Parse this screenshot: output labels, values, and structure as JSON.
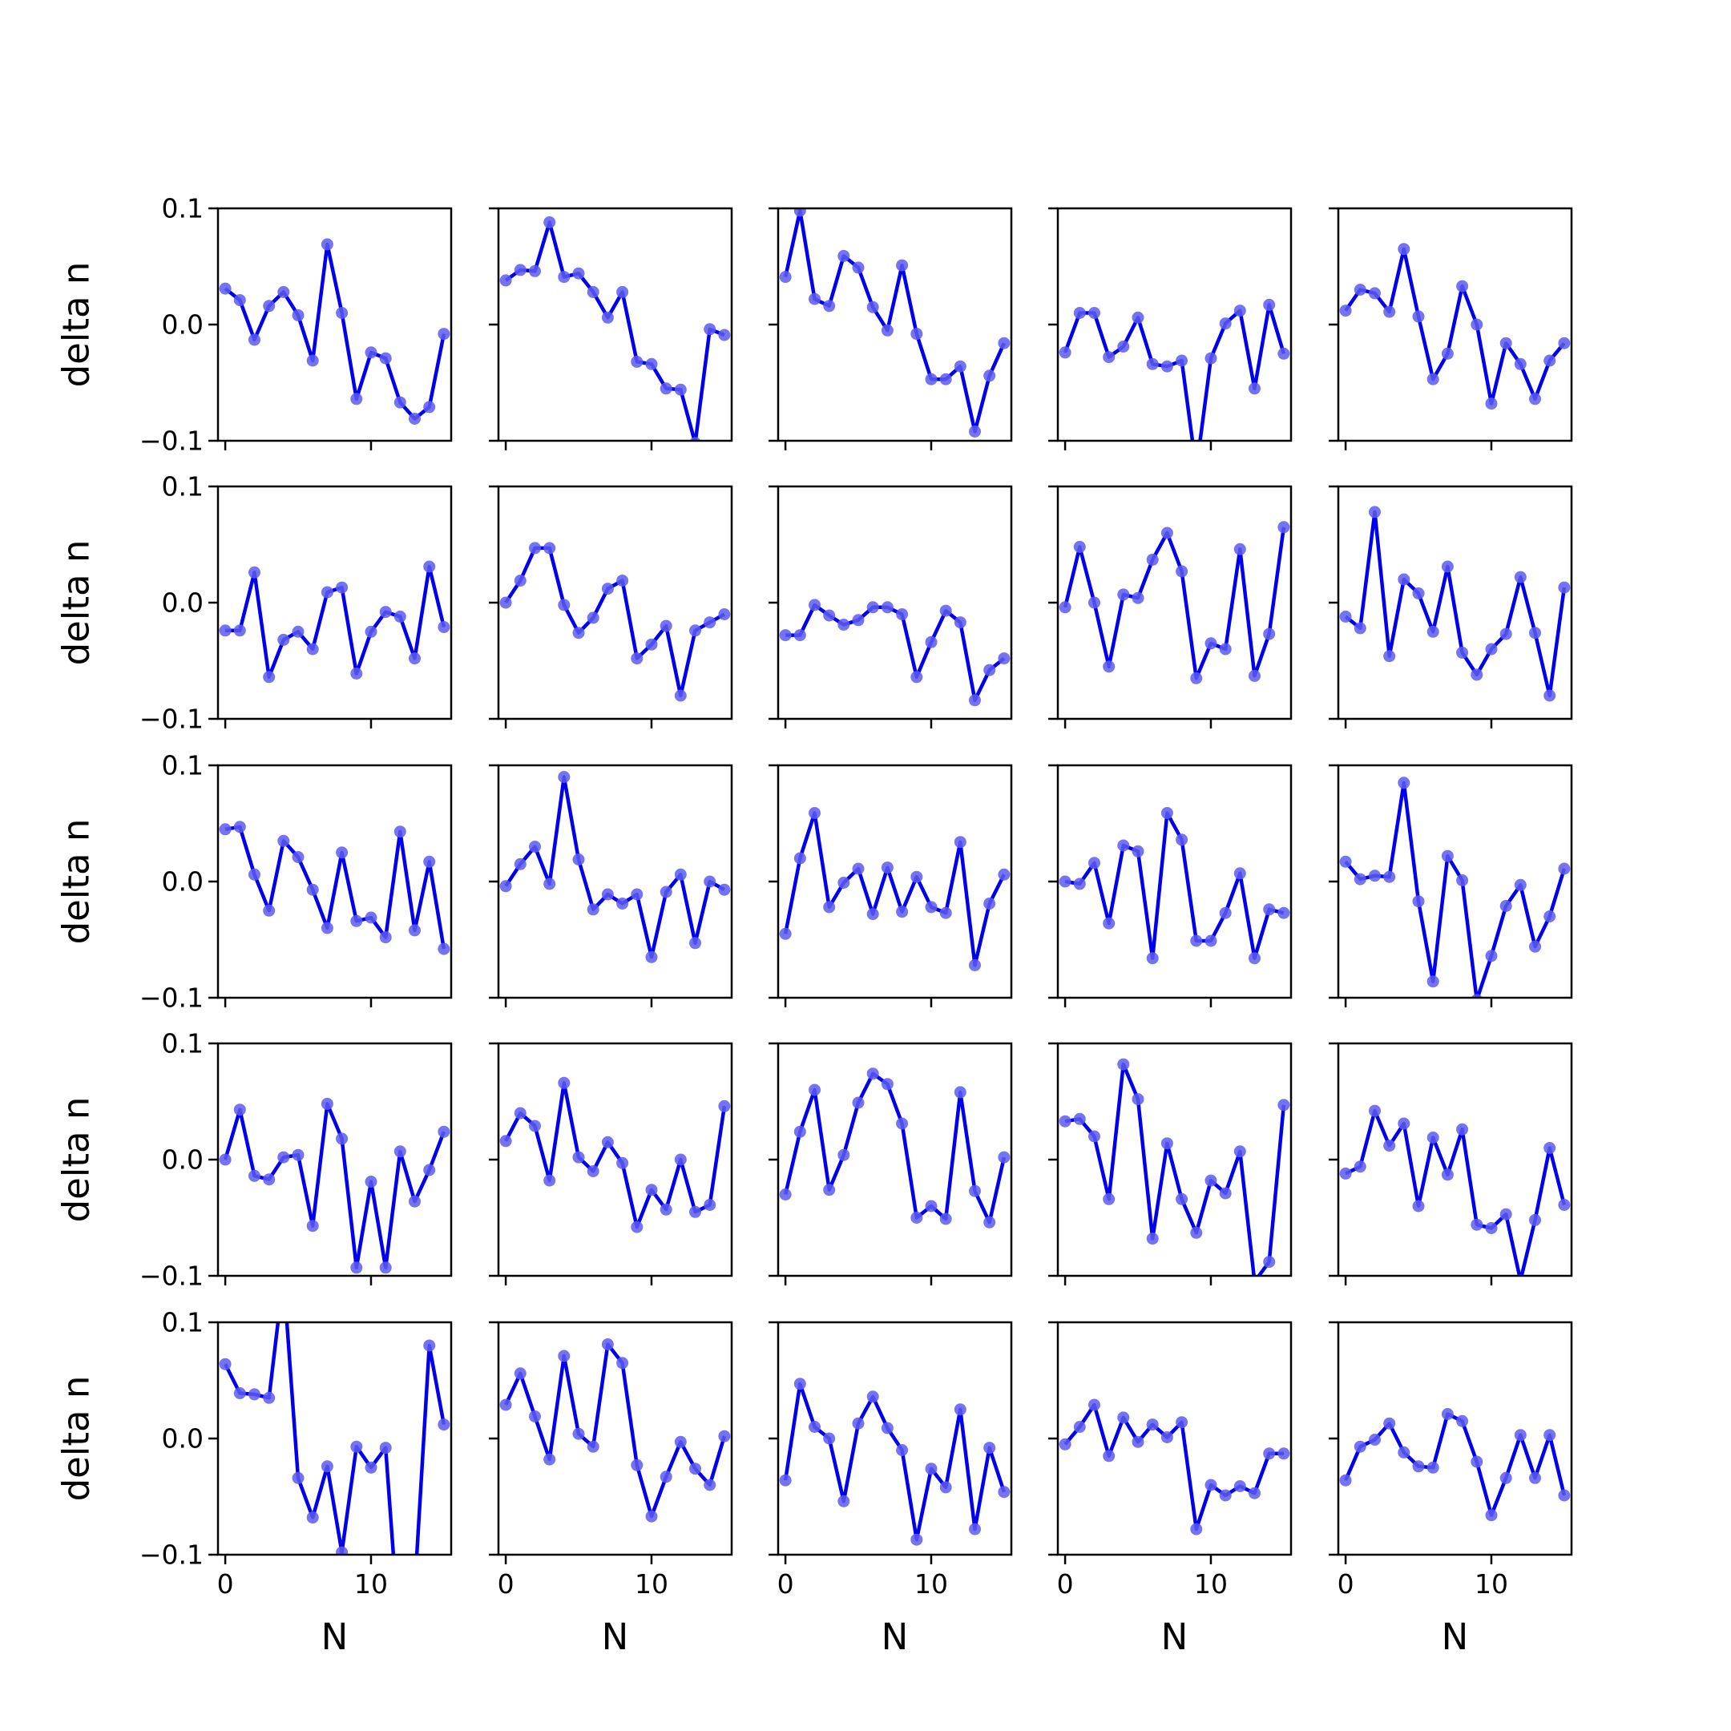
{
  "chart_data": {
    "type": "line",
    "layout": {
      "rows": 5,
      "cols": 5
    },
    "xlabel": "N",
    "ylabel": "delta n",
    "x": [
      0,
      1,
      2,
      3,
      4,
      5,
      6,
      7,
      8,
      9,
      10,
      11,
      12,
      13,
      14,
      15
    ],
    "xticks": [
      0,
      10
    ],
    "xtick_labels": [
      "0",
      "10"
    ],
    "ylim": [
      -0.1,
      0.1
    ],
    "yticks": [
      -0.1,
      0.0,
      0.1
    ],
    "ytick_labels": [
      "−0.1",
      "0.0",
      "0.1"
    ],
    "line_color": "#0000ee",
    "marker_color": "#5c5cf0",
    "panels": [
      {
        "values": [
          0.031,
          0.021,
          -0.013,
          0.016,
          0.028,
          0.008,
          -0.031,
          0.069,
          0.01,
          -0.064,
          -0.024,
          -0.029,
          -0.067,
          -0.081,
          -0.071,
          -0.008
        ]
      },
      {
        "values": [
          0.038,
          0.047,
          0.046,
          0.088,
          0.041,
          0.044,
          0.028,
          0.006,
          0.028,
          -0.032,
          -0.034,
          -0.055,
          -0.056,
          -0.102,
          -0.004,
          -0.009
        ]
      },
      {
        "values": [
          0.041,
          0.098,
          0.022,
          0.016,
          0.059,
          0.049,
          0.015,
          -0.005,
          0.051,
          -0.008,
          -0.047,
          -0.047,
          -0.036,
          -0.092,
          -0.044,
          -0.016
        ]
      },
      {
        "values": [
          -0.024,
          0.01,
          0.01,
          -0.028,
          -0.019,
          0.006,
          -0.034,
          -0.036,
          -0.031,
          -0.125,
          -0.029,
          0.001,
          0.012,
          -0.055,
          0.017,
          -0.025
        ]
      },
      {
        "values": [
          0.012,
          0.03,
          0.027,
          0.011,
          0.065,
          0.007,
          -0.047,
          -0.025,
          0.033,
          0.0,
          -0.068,
          -0.016,
          -0.034,
          -0.064,
          -0.031,
          -0.016
        ]
      },
      {
        "values": [
          -0.024,
          -0.024,
          0.026,
          -0.064,
          -0.032,
          -0.025,
          -0.04,
          0.009,
          0.013,
          -0.061,
          -0.025,
          -0.008,
          -0.012,
          -0.048,
          0.031,
          -0.021
        ]
      },
      {
        "values": [
          0.0,
          0.019,
          0.047,
          0.047,
          -0.002,
          -0.026,
          -0.013,
          0.012,
          0.019,
          -0.048,
          -0.036,
          -0.02,
          -0.08,
          -0.024,
          -0.017,
          -0.01
        ]
      },
      {
        "values": [
          -0.028,
          -0.028,
          -0.002,
          -0.011,
          -0.019,
          -0.015,
          -0.004,
          -0.004,
          -0.01,
          -0.064,
          -0.034,
          -0.007,
          -0.017,
          -0.084,
          -0.058,
          -0.048
        ]
      },
      {
        "values": [
          -0.004,
          0.048,
          0.0,
          -0.055,
          0.007,
          0.004,
          0.037,
          0.06,
          0.027,
          -0.065,
          -0.035,
          -0.04,
          0.046,
          -0.063,
          -0.027,
          0.065
        ]
      },
      {
        "values": [
          -0.012,
          -0.022,
          0.078,
          -0.046,
          0.02,
          0.008,
          -0.025,
          0.031,
          -0.043,
          -0.062,
          -0.04,
          -0.027,
          0.022,
          -0.026,
          -0.08,
          0.013
        ]
      },
      {
        "values": [
          0.045,
          0.047,
          0.006,
          -0.025,
          0.035,
          0.021,
          -0.007,
          -0.04,
          0.025,
          -0.034,
          -0.031,
          -0.048,
          0.043,
          -0.042,
          0.017,
          -0.058
        ]
      },
      {
        "values": [
          -0.004,
          0.015,
          0.03,
          -0.002,
          0.09,
          0.019,
          -0.024,
          -0.011,
          -0.019,
          -0.011,
          -0.065,
          -0.009,
          0.006,
          -0.053,
          0.0,
          -0.007
        ]
      },
      {
        "values": [
          -0.045,
          0.02,
          0.059,
          -0.022,
          -0.001,
          0.011,
          -0.028,
          0.012,
          -0.026,
          0.004,
          -0.022,
          -0.027,
          0.034,
          -0.072,
          -0.019,
          0.006
        ]
      },
      {
        "values": [
          0.0,
          -0.002,
          0.016,
          -0.036,
          0.031,
          0.026,
          -0.066,
          0.059,
          0.036,
          -0.051,
          -0.051,
          -0.027,
          0.007,
          -0.066,
          -0.024,
          -0.027
        ]
      },
      {
        "values": [
          0.017,
          0.002,
          0.005,
          0.004,
          0.085,
          -0.017,
          -0.086,
          0.022,
          0.001,
          -0.102,
          -0.064,
          -0.021,
          -0.003,
          -0.056,
          -0.03,
          0.011
        ]
      },
      {
        "values": [
          0.0,
          0.043,
          -0.014,
          -0.017,
          0.002,
          0.004,
          -0.057,
          0.048,
          0.018,
          -0.093,
          -0.019,
          -0.093,
          0.007,
          -0.036,
          -0.009,
          0.024
        ]
      },
      {
        "values": [
          0.016,
          0.04,
          0.029,
          -0.018,
          0.066,
          0.002,
          -0.01,
          0.015,
          -0.003,
          -0.058,
          -0.026,
          -0.043,
          0.0,
          -0.045,
          -0.039,
          0.046
        ]
      },
      {
        "values": [
          -0.03,
          0.024,
          0.06,
          -0.026,
          0.004,
          0.049,
          0.074,
          0.065,
          0.031,
          -0.05,
          -0.04,
          -0.051,
          0.058,
          -0.027,
          -0.054,
          0.002
        ]
      },
      {
        "values": [
          0.033,
          0.035,
          0.02,
          -0.034,
          0.082,
          0.052,
          -0.068,
          0.014,
          -0.034,
          -0.063,
          -0.018,
          -0.029,
          0.007,
          -0.105,
          -0.088,
          0.047
        ]
      },
      {
        "values": [
          -0.012,
          -0.006,
          0.042,
          0.012,
          0.031,
          -0.04,
          0.019,
          -0.013,
          0.026,
          -0.056,
          -0.059,
          -0.047,
          -0.104,
          -0.052,
          0.01,
          -0.039
        ]
      },
      {
        "values": [
          0.064,
          0.039,
          0.038,
          0.035,
          0.14,
          -0.034,
          -0.068,
          -0.024,
          -0.098,
          -0.007,
          -0.025,
          -0.008,
          -0.18,
          -0.13,
          0.08,
          0.012
        ]
      },
      {
        "values": [
          0.029,
          0.056,
          0.019,
          -0.018,
          0.071,
          0.004,
          -0.007,
          0.081,
          0.065,
          -0.023,
          -0.067,
          -0.033,
          -0.003,
          -0.026,
          -0.04,
          0.002
        ]
      },
      {
        "values": [
          -0.036,
          0.047,
          0.01,
          0.0,
          -0.054,
          0.013,
          0.036,
          0.009,
          -0.01,
          -0.087,
          -0.026,
          -0.042,
          0.025,
          -0.078,
          -0.008,
          -0.046
        ]
      },
      {
        "values": [
          -0.005,
          0.01,
          0.029,
          -0.015,
          0.018,
          -0.003,
          0.012,
          0.001,
          0.014,
          -0.078,
          -0.04,
          -0.049,
          -0.041,
          -0.047,
          -0.013,
          -0.013
        ]
      },
      {
        "values": [
          -0.036,
          -0.007,
          -0.001,
          0.013,
          -0.012,
          -0.024,
          -0.025,
          0.021,
          0.015,
          -0.02,
          -0.066,
          -0.034,
          0.003,
          -0.034,
          0.003,
          -0.049
        ]
      }
    ]
  }
}
